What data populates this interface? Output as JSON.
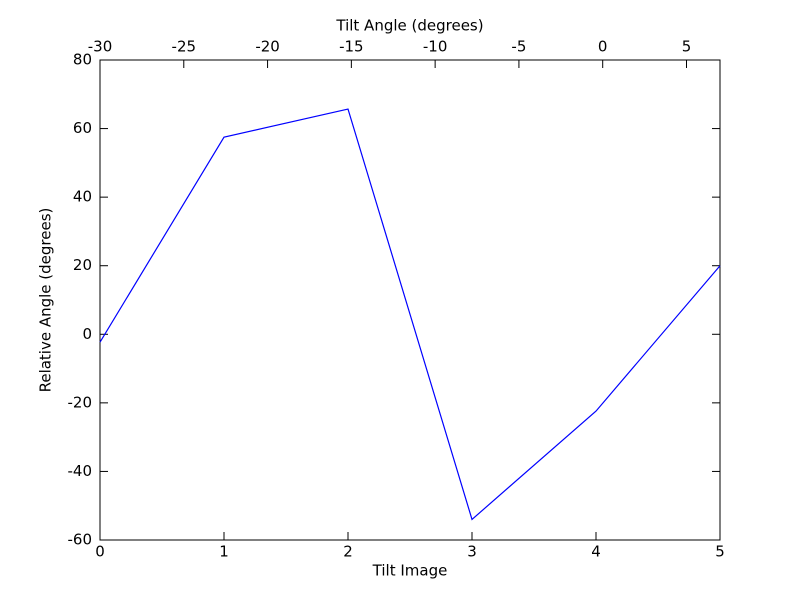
{
  "chart_data": {
    "type": "line",
    "xlabel": "Tilt Image",
    "ylabel": "Relative Angle (degrees)",
    "x2label": "Tilt Angle (degrees)",
    "x": [
      0,
      1,
      2,
      3,
      4,
      5
    ],
    "series": [
      {
        "color": "#0000ff",
        "values": [
          -2.3,
          57.5,
          65.7,
          -54,
          -22.4,
          20
        ]
      }
    ],
    "xlim": [
      0,
      5
    ],
    "xticks": [
      0,
      1,
      2,
      3,
      4,
      5
    ],
    "ylim": [
      -60,
      80
    ],
    "yticks": [
      -60,
      -40,
      -20,
      0,
      20,
      40,
      60,
      80
    ],
    "x2lim": [
      -30,
      7
    ],
    "x2ticks": [
      -30,
      -25,
      -20,
      -15,
      -10,
      -5,
      0,
      5
    ],
    "grid": false
  }
}
